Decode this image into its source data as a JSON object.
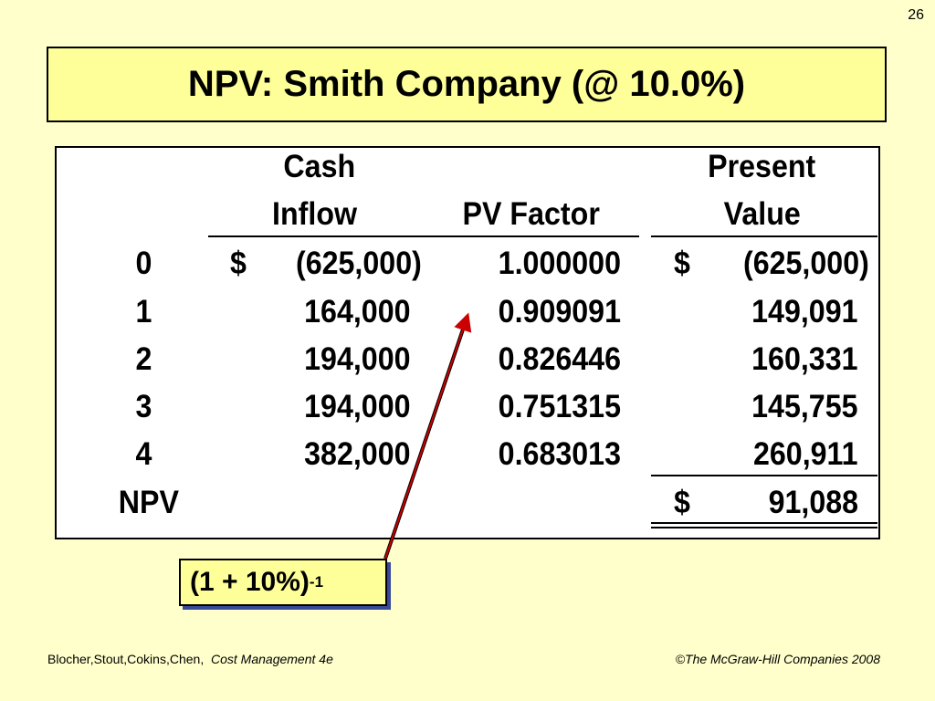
{
  "slide_number": "26",
  "title": "NPV: Smith Company (@ 10.0%)",
  "table": {
    "headers": {
      "cash_line1": "Cash",
      "cash_line2": "Inflow",
      "pv_factor": "PV Factor",
      "present_line1": "Present",
      "present_line2": "Value"
    },
    "rows": [
      {
        "period": "0",
        "inflow_sign": "$",
        "inflow": "(625,000)",
        "factor": "1.000000",
        "pv_sign": "$",
        "pv": "(625,000)"
      },
      {
        "period": "1",
        "inflow_sign": "",
        "inflow": "164,000",
        "factor": "0.909091",
        "pv_sign": "",
        "pv": "149,091"
      },
      {
        "period": "2",
        "inflow_sign": "",
        "inflow": "194,000",
        "factor": "0.826446",
        "pv_sign": "",
        "pv": "160,331"
      },
      {
        "period": "3",
        "inflow_sign": "",
        "inflow": "194,000",
        "factor": "0.751315",
        "pv_sign": "",
        "pv": "145,755"
      },
      {
        "period": "4",
        "inflow_sign": "",
        "inflow": "382,000",
        "factor": "0.683013",
        "pv_sign": "",
        "pv": "260,911"
      }
    ],
    "npv_label": "NPV",
    "npv_sign": "$",
    "npv_value": "91,088"
  },
  "callout": {
    "base": "(1 + 10%)",
    "exponent": "-1"
  },
  "footer": {
    "authors": "Blocher,Stout,Cokins,Chen,",
    "book": "Cost Management 4e",
    "copyright": "©The McGraw-Hill Companies 2008"
  },
  "colors": {
    "background": "#ffffcc",
    "title_fill": "#ffff99",
    "arrow": "#cc0000",
    "callout_shadow": "#3a4a9a"
  }
}
